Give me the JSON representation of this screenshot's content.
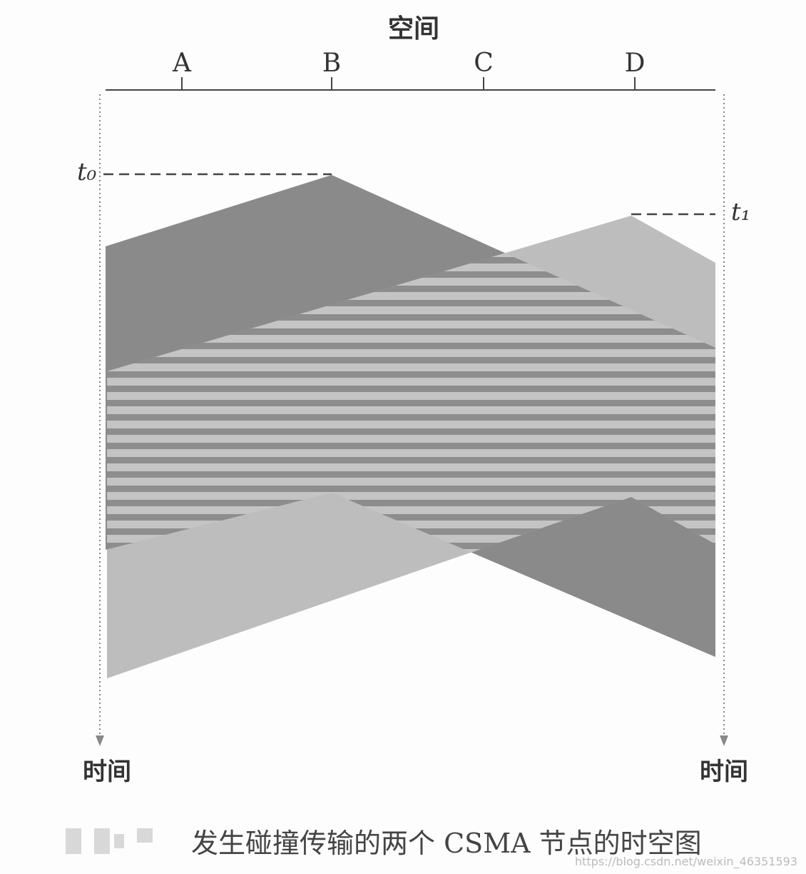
{
  "header": {
    "title": "空间"
  },
  "nodes": [
    {
      "label": "A"
    },
    {
      "label": "B"
    },
    {
      "label": "C"
    },
    {
      "label": "D"
    }
  ],
  "time_markers": [
    {
      "label": "t₀"
    },
    {
      "label": "t₁"
    }
  ],
  "time_labels": [
    "时间",
    "时间"
  ],
  "caption": "发生碰撞传输的两个 CSMA 节点的时空图",
  "watermark": "https://blog.csdn.net/weixin_46351593"
}
